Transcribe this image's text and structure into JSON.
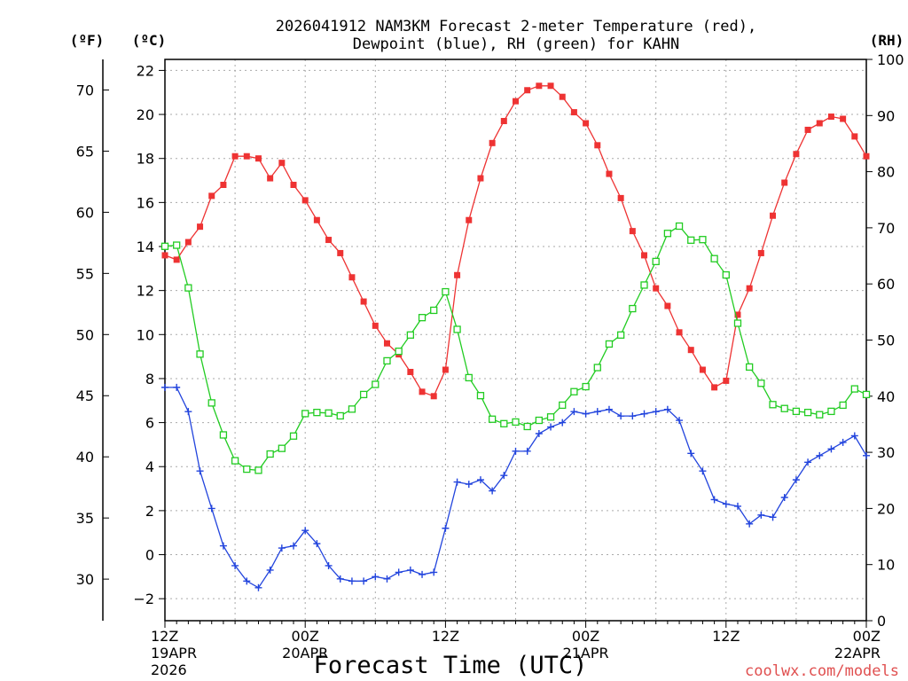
{
  "chart_data": {
    "type": "line",
    "title_line1": "2026041912 NAM3KM Forecast 2-meter Temperature (red),",
    "title_line2": "Dewpoint (blue), RH (green) for KAHN",
    "xlabel": "Forecast Time (UTC)",
    "watermark": "coolwx.com/models",
    "unit_f": "(ºF)",
    "unit_c": "(ºC)",
    "unit_rh": "(RH)",
    "grid": true,
    "xlim": [
      0,
      60
    ],
    "ylim_c": [
      -3,
      22.5
    ],
    "ylim_rh": [
      0,
      100
    ],
    "ylim_f": [
      26.6,
      72.5
    ],
    "x_hours": [
      0,
      1,
      2,
      3,
      4,
      5,
      6,
      7,
      8,
      9,
      10,
      11,
      12,
      13,
      14,
      15,
      16,
      17,
      18,
      19,
      20,
      21,
      22,
      23,
      24,
      25,
      26,
      27,
      28,
      29,
      30,
      31,
      32,
      33,
      34,
      35,
      36,
      37,
      38,
      39,
      40,
      41,
      42,
      43,
      44,
      45,
      46,
      47,
      48,
      49,
      50,
      51,
      52,
      53,
      54,
      55,
      56,
      57,
      58,
      59,
      60
    ],
    "x_ticks": [
      {
        "hour": 0,
        "label1": "12Z",
        "label2": "19APR",
        "label3": "2026"
      },
      {
        "hour": 12,
        "label1": "00Z",
        "label2": "20APR",
        "label3": ""
      },
      {
        "hour": 24,
        "label1": "12Z",
        "label2": "",
        "label3": ""
      },
      {
        "hour": 36,
        "label1": "00Z",
        "label2": "21APR",
        "label3": ""
      },
      {
        "hour": 48,
        "label1": "12Z",
        "label2": "",
        "label3": ""
      },
      {
        "hour": 60,
        "label1": "00Z",
        "label2": "22APR",
        "label3": ""
      }
    ],
    "y_ticks_c": [
      {
        "value": -2,
        "label": "−2"
      },
      {
        "value": 0,
        "label": "0"
      },
      {
        "value": 2,
        "label": "2"
      },
      {
        "value": 4,
        "label": "4"
      },
      {
        "value": 6,
        "label": "6"
      },
      {
        "value": 8,
        "label": "8"
      },
      {
        "value": 10,
        "label": "10"
      },
      {
        "value": 12,
        "label": "12"
      },
      {
        "value": 14,
        "label": "14"
      },
      {
        "value": 16,
        "label": "16"
      },
      {
        "value": 18,
        "label": "18"
      },
      {
        "value": 20,
        "label": "20"
      },
      {
        "value": 22,
        "label": "22"
      }
    ],
    "y_ticks_f": [
      {
        "value": 30,
        "label": "30"
      },
      {
        "value": 35,
        "label": "35"
      },
      {
        "value": 40,
        "label": "40"
      },
      {
        "value": 45,
        "label": "45"
      },
      {
        "value": 50,
        "label": "50"
      },
      {
        "value": 55,
        "label": "55"
      },
      {
        "value": 60,
        "label": "60"
      },
      {
        "value": 65,
        "label": "65"
      },
      {
        "value": 70,
        "label": "70"
      }
    ],
    "y_ticks_rh": [
      {
        "value": 0,
        "label": "0"
      },
      {
        "value": 10,
        "label": "10"
      },
      {
        "value": 20,
        "label": "20"
      },
      {
        "value": 30,
        "label": "30"
      },
      {
        "value": 40,
        "label": "40"
      },
      {
        "value": 50,
        "label": "50"
      },
      {
        "value": 60,
        "label": "60"
      },
      {
        "value": 70,
        "label": "70"
      },
      {
        "value": 80,
        "label": "80"
      },
      {
        "value": 90,
        "label": "90"
      },
      {
        "value": 100,
        "label": "100"
      }
    ],
    "series": [
      {
        "name": "2-meter Temperature",
        "axis": "c",
        "color": "#ee3333",
        "marker": "filled-square",
        "values": [
          13.6,
          13.4,
          14.2,
          14.9,
          16.3,
          16.8,
          18.1,
          18.1,
          18.0,
          17.1,
          17.8,
          16.8,
          16.1,
          15.2,
          14.3,
          13.7,
          12.6,
          11.5,
          10.4,
          9.6,
          9.1,
          8.3,
          7.4,
          7.2,
          8.4,
          12.7,
          15.2,
          17.1,
          18.7,
          19.7,
          20.6,
          21.1,
          21.3,
          21.3,
          20.8,
          20.1,
          19.6,
          18.6,
          17.3,
          16.2,
          14.7,
          13.6,
          12.1,
          11.3,
          10.1,
          9.3,
          8.4,
          7.6,
          7.9,
          10.9,
          12.1,
          13.7,
          15.4,
          16.9,
          18.2,
          19.3,
          19.6,
          19.9,
          19.8,
          19.0,
          18.1
        ]
      },
      {
        "name": "Dewpoint",
        "axis": "c",
        "color": "#2244dd",
        "marker": "plus",
        "values": [
          7.6,
          7.6,
          6.5,
          3.8,
          2.1,
          0.4,
          -0.5,
          -1.2,
          -1.5,
          -0.7,
          0.3,
          0.4,
          1.1,
          0.5,
          -0.5,
          -1.1,
          -1.2,
          -1.2,
          -1.0,
          -1.1,
          -0.8,
          -0.7,
          -0.9,
          -0.8,
          1.2,
          3.3,
          3.2,
          3.4,
          2.9,
          3.6,
          4.7,
          4.7,
          5.5,
          5.8,
          6.0,
          6.5,
          6.4,
          6.5,
          6.6,
          6.3,
          6.3,
          6.4,
          6.5,
          6.6,
          6.1,
          4.6,
          3.8,
          2.5,
          2.3,
          2.2,
          1.4,
          1.8,
          1.7,
          2.6,
          3.4,
          4.2,
          4.5,
          4.8,
          5.1,
          5.4,
          4.5
        ]
      },
      {
        "name": "RH",
        "axis": "rh",
        "color": "#22cc22",
        "marker": "open-square",
        "values": [
          66.7,
          66.9,
          59.3,
          47.5,
          38.8,
          33.1,
          28.5,
          27.0,
          26.8,
          29.7,
          30.7,
          32.9,
          36.9,
          37.1,
          37.0,
          36.5,
          37.7,
          40.3,
          42.1,
          46.3,
          48.0,
          50.9,
          54.0,
          55.3,
          58.6,
          51.9,
          43.3,
          40.1,
          35.9,
          35.1,
          35.4,
          34.6,
          35.7,
          36.3,
          38.4,
          40.8,
          41.7,
          45.1,
          49.3,
          50.9,
          55.6,
          59.8,
          64.0,
          69.0,
          70.3,
          67.8,
          67.9,
          64.5,
          61.6,
          53.0,
          45.2,
          42.3,
          38.5,
          37.8,
          37.3,
          37.1,
          36.7,
          37.3,
          38.4,
          41.3,
          40.3
        ]
      }
    ]
  }
}
